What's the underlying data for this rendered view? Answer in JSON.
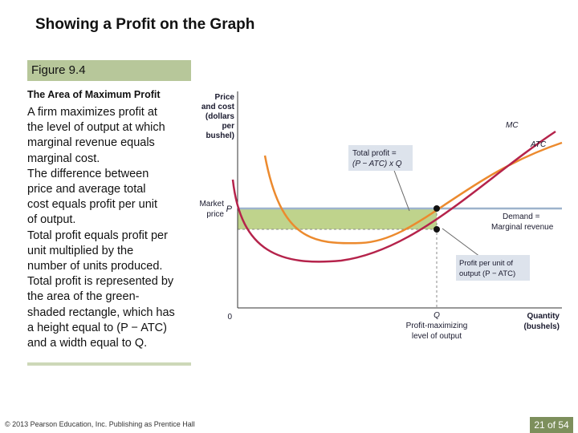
{
  "slide": {
    "title": "Showing a Profit on the Graph",
    "figure_label": "Figure 9.4",
    "figure_subtitle": "The Area of Maximum Profit",
    "body_lines": [
      "A firm maximizes profit at",
      "the level of output at which",
      "marginal revenue equals",
      "marginal cost.",
      "The difference between",
      "price and average total",
      "cost equals profit per unit",
      "of output.",
      "Total profit equals profit per",
      "unit multiplied by the",
      "number of units produced.",
      "Total profit is represented by",
      "the area of the green-",
      "shaded rectangle, which has",
      "a height equal to (P − ATC)",
      "and a width equal to Q."
    ],
    "copyright": "© 2013 Pearson Education, Inc. Publishing as Prentice Hall",
    "page_indicator": "21 of 54"
  },
  "diagram": {
    "y_axis_label": [
      "Price",
      "and cost",
      "(dollars",
      "per",
      "bushel)"
    ],
    "market_price_label": [
      "Market",
      "price"
    ],
    "price_tick": "P",
    "origin_label": "0",
    "quantity_tick": "Q",
    "x_axis_label": [
      "Quantity",
      "(bushels)"
    ],
    "q_caption": [
      "Profit-maximizing",
      "level of output"
    ],
    "mc_label": "MC",
    "atc_label": "ATC",
    "demand_label": [
      "Demand =",
      "Marginal revenue"
    ],
    "total_profit_callout": [
      "Total profit =",
      "(P − ATC) x Q"
    ],
    "profit_per_unit_callout": [
      "Profit per unit of",
      "output (P − ATC)"
    ],
    "colors": {
      "mc": "#b5234b",
      "atc": "#ec8a2e",
      "demand": "#9db3cc",
      "profit_area": "#bfd38c",
      "callout_bg": "#dde3ec"
    }
  }
}
